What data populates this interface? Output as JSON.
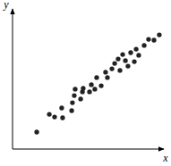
{
  "chart_data": {
    "type": "scatter",
    "x_label": "x",
    "y_label": "y",
    "x": [
      16.0,
      24.3,
      27.8,
      33.1,
      32.5,
      39.1,
      39.6,
      40.8,
      41.4,
      45.0,
      46.2,
      46.7,
      50.9,
      52.1,
      54.4,
      55.6,
      58.6,
      61.5,
      62.7,
      65.7,
      67.5,
      69.8,
      71.0,
      72.8,
      74.6,
      76.3,
      78.1,
      80.5,
      81.7,
      83.4,
      87.0,
      89.9,
      93.5,
      97.0
    ],
    "values": [
      12.1,
      24.8,
      22.9,
      22.3,
      29.3,
      27.4,
      33.1,
      38.2,
      42.7,
      35.7,
      40.8,
      43.3,
      40.8,
      45.9,
      42.7,
      51.0,
      45.2,
      54.8,
      51.0,
      57.3,
      61.1,
      64.3,
      56.1,
      67.5,
      63.1,
      59.2,
      68.8,
      62.4,
      71.3,
      66.9,
      73.9,
      78.3,
      77.7,
      81.5
    ],
    "xlim": [
      0,
      100
    ],
    "ylim": [
      0,
      100
    ],
    "xticks": [],
    "yticks": [],
    "tick_labels": false,
    "grid": false,
    "color": "#222222",
    "marker": "circle"
  }
}
